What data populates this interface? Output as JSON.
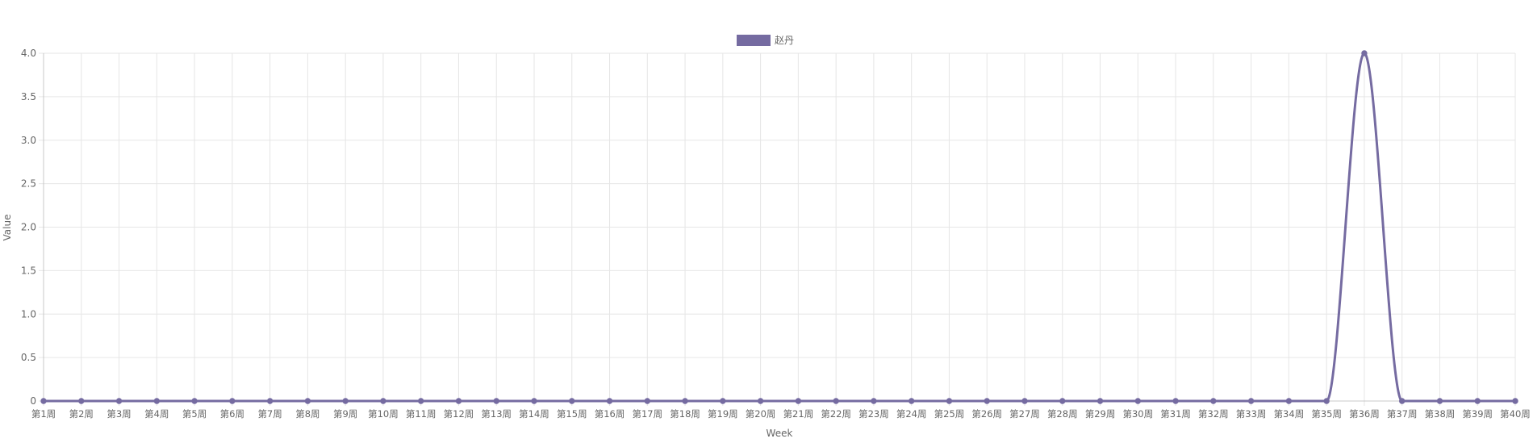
{
  "chart_data": {
    "type": "line",
    "title": "",
    "xlabel": "Week",
    "ylabel": "Value",
    "ylim": [
      0,
      4
    ],
    "yticks": [
      "0",
      "0.5",
      "1.0",
      "1.5",
      "2.0",
      "2.5",
      "3.0",
      "3.5",
      "4.0"
    ],
    "grid": true,
    "legend_position": "top-center",
    "categories": [
      "第1周",
      "第2周",
      "第3周",
      "第4周",
      "第5周",
      "第6周",
      "第7周",
      "第8周",
      "第9周",
      "第10周",
      "第11周",
      "第12周",
      "第13周",
      "第14周",
      "第15周",
      "第16周",
      "第17周",
      "第18周",
      "第19周",
      "第20周",
      "第21周",
      "第22周",
      "第23周",
      "第24周",
      "第25周",
      "第26周",
      "第27周",
      "第28周",
      "第29周",
      "第30周",
      "第31周",
      "第32周",
      "第33周",
      "第34周",
      "第35周",
      "第36周",
      "第37周",
      "第38周",
      "第39周",
      "第40周"
    ],
    "series": [
      {
        "name": "赵丹",
        "color": "#756ba1",
        "values": [
          0,
          0,
          0,
          0,
          0,
          0,
          0,
          0,
          0,
          0,
          0,
          0,
          0,
          0,
          0,
          0,
          0,
          0,
          0,
          0,
          0,
          0,
          0,
          0,
          0,
          0,
          0,
          0,
          0,
          0,
          0,
          0,
          0,
          0,
          0,
          4,
          0,
          0,
          0,
          0
        ]
      }
    ]
  }
}
